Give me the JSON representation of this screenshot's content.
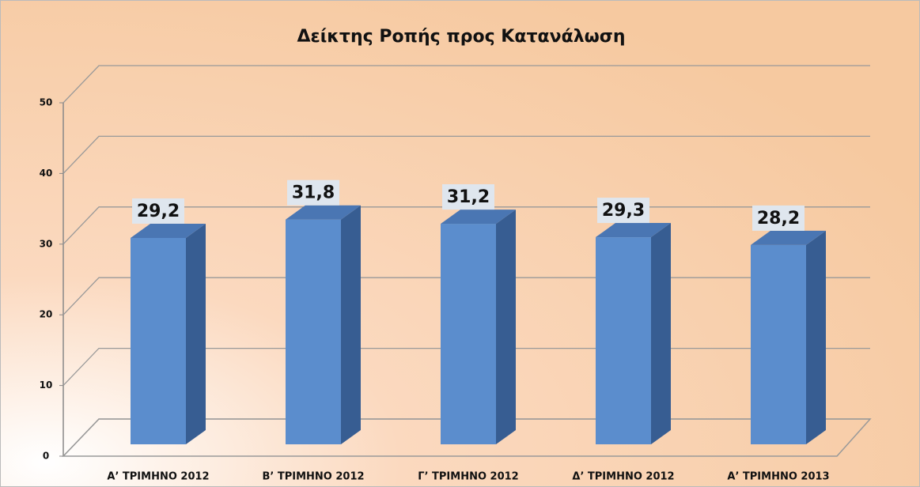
{
  "chart_data": {
    "type": "bar3d",
    "title": "Δείκτης Ροπής προς Κατανάλωση",
    "categories": [
      "Α’ ΤΡΙΜΗΝΟ 2012",
      "Β’ ΤΡΙΜΗΝΟ 2012",
      "Γ’ ΤΡΙΜΗΝΟ 2012",
      "Δ’ ΤΡΙΜΗΝΟ 2012",
      "Α’ ΤΡΙΜΗΝΟ 2013"
    ],
    "values": [
      29.2,
      31.8,
      31.2,
      29.3,
      28.2
    ],
    "value_labels": [
      "29,2",
      "31,8",
      "31,2",
      "29,3",
      "28,2"
    ],
    "color": "#5b8dcd",
    "ylim": [
      0,
      50
    ],
    "yticks": [
      0,
      10,
      20,
      30,
      40,
      50
    ],
    "grid": true
  }
}
